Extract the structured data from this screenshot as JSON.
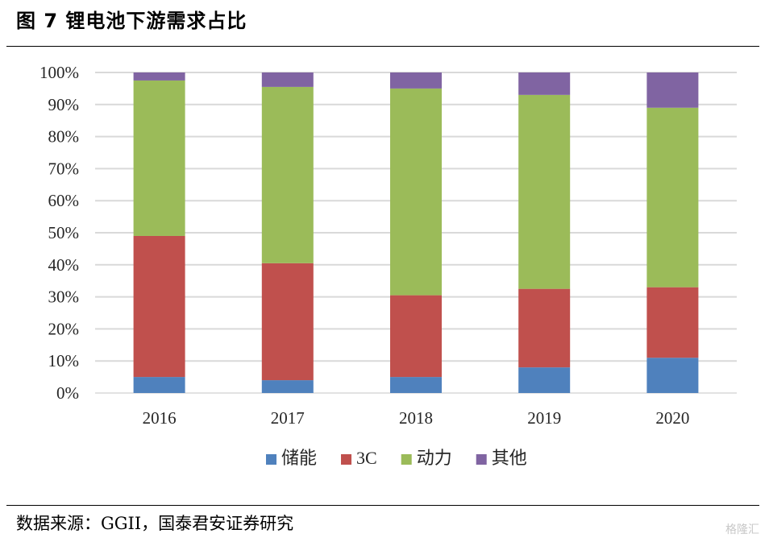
{
  "header": {
    "title": "图 7 锂电池下游需求占比"
  },
  "footer": {
    "source": "数据来源：GGII，国泰君安证券研究",
    "watermark": "格隆汇"
  },
  "colors": {
    "储能": "#4f81bd",
    "3C": "#c0504d",
    "动力": "#9bbb59",
    "其他": "#8064a2",
    "grid": "#d9d9d9",
    "axis": "#d9d9d9"
  },
  "chart_data": {
    "type": "bar",
    "stacked": true,
    "title": "",
    "xlabel": "",
    "ylabel": "",
    "ylim": [
      0,
      1
    ],
    "y_format": "percent",
    "y_ticks": [
      "0%",
      "10%",
      "20%",
      "30%",
      "40%",
      "50%",
      "60%",
      "70%",
      "80%",
      "90%",
      "100%"
    ],
    "grid": true,
    "legend": "bottom",
    "categories": [
      "2016",
      "2017",
      "2018",
      "2019",
      "2020"
    ],
    "series": [
      {
        "name": "储能",
        "color": "#4f81bd",
        "values": [
          0.05,
          0.04,
          0.05,
          0.08,
          0.11
        ]
      },
      {
        "name": "3C",
        "color": "#c0504d",
        "values": [
          0.44,
          0.365,
          0.255,
          0.245,
          0.22
        ]
      },
      {
        "name": "动力",
        "color": "#9bbb59",
        "values": [
          0.485,
          0.55,
          0.645,
          0.605,
          0.56
        ]
      },
      {
        "name": "其他",
        "color": "#8064a2",
        "values": [
          0.025,
          0.045,
          0.05,
          0.07,
          0.11
        ]
      }
    ]
  }
}
